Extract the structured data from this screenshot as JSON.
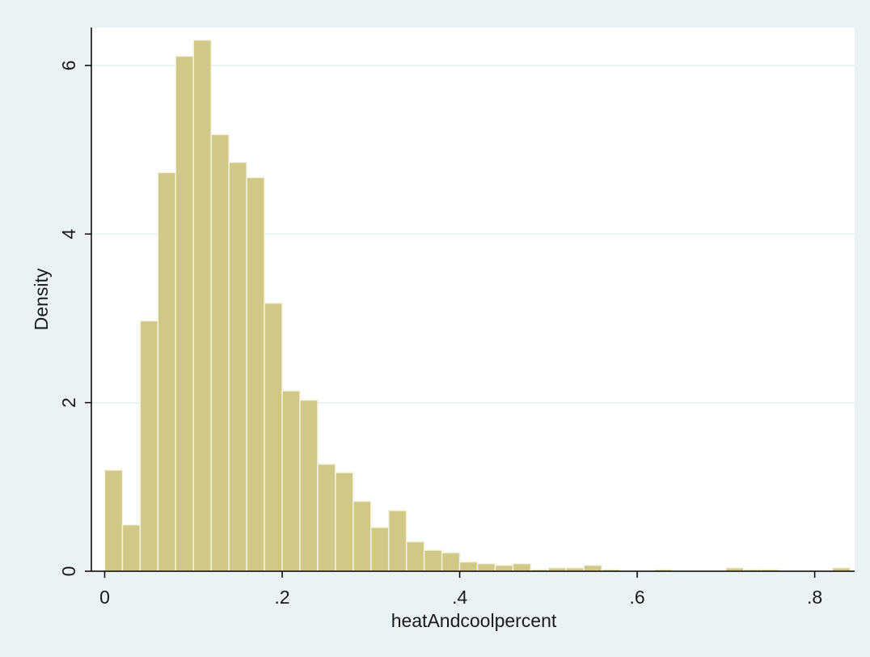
{
  "chart_data": {
    "type": "bar",
    "subtype": "histogram",
    "title": "",
    "xlabel": "heatAndcoolpercent",
    "ylabel": "Density",
    "xlim": [
      -0.015,
      0.845
    ],
    "ylim": [
      0,
      6.45
    ],
    "x_ticks": [
      0,
      0.2,
      0.4,
      0.6,
      0.8
    ],
    "x_tick_labels": [
      "0",
      ".2",
      ".4",
      ".6",
      ".8"
    ],
    "y_ticks": [
      0,
      2,
      4,
      6
    ],
    "y_tick_labels": [
      "0",
      "2",
      "4",
      "6"
    ],
    "y_tick_orientation": "vertical",
    "grid": "horizontal",
    "bin_width": 0.02,
    "bin_starts": [
      0.0,
      0.02,
      0.04,
      0.06,
      0.08,
      0.1,
      0.12,
      0.14,
      0.16,
      0.18,
      0.2,
      0.22,
      0.24,
      0.26,
      0.28,
      0.3,
      0.32,
      0.34,
      0.36,
      0.38,
      0.4,
      0.42,
      0.44,
      0.46,
      0.48,
      0.5,
      0.52,
      0.54,
      0.56,
      0.58,
      0.6,
      0.62,
      0.64,
      0.66,
      0.68,
      0.7,
      0.72,
      0.74,
      0.76,
      0.78,
      0.8,
      0.82
    ],
    "values": [
      1.2,
      0.55,
      2.97,
      4.73,
      6.11,
      6.3,
      5.18,
      4.85,
      4.67,
      3.18,
      2.14,
      2.03,
      1.27,
      1.17,
      0.83,
      0.52,
      0.72,
      0.35,
      0.25,
      0.22,
      0.11,
      0.09,
      0.07,
      0.09,
      0.02,
      0.04,
      0.04,
      0.07,
      0.02,
      0.0,
      0.0,
      0.02,
      0.0,
      0.0,
      0.0,
      0.04,
      0.02,
      0.02,
      0.0,
      0.0,
      0.0,
      0.04
    ],
    "bar_color": "#cfc886",
    "bar_edge_color": "#f4f2de",
    "plot_background": "#ffffff",
    "figure_background": "#eaf2f3",
    "grid_color": "#e6eff0"
  }
}
